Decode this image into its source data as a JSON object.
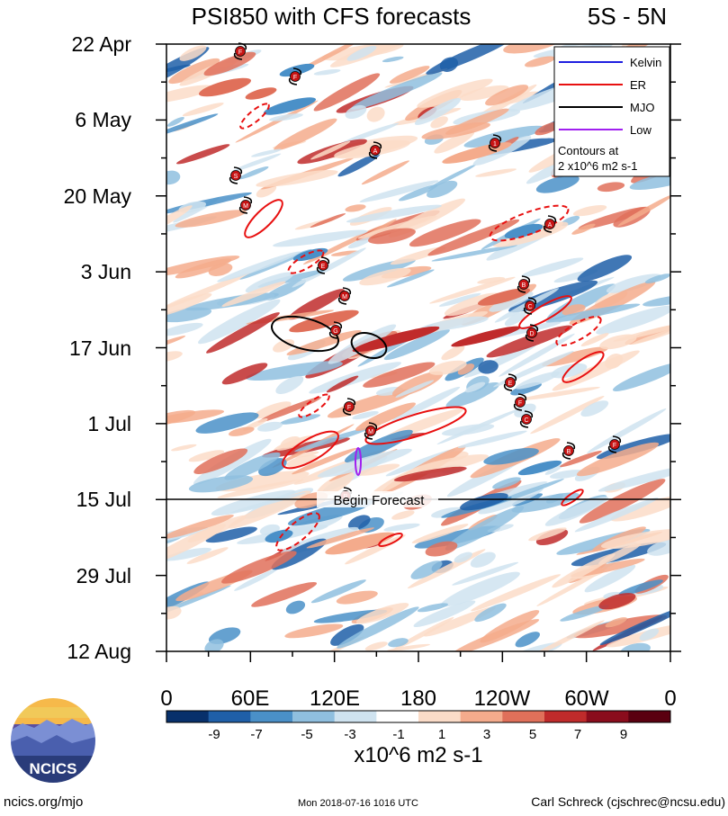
{
  "title": "PSI850 with CFS forecasts",
  "region": "5S - 5N",
  "y_ticks": [
    "22 Apr",
    "6 May",
    "20 May",
    "3 Jun",
    "17 Jun",
    "1 Jul",
    "15 Jul",
    "29 Jul",
    "12 Aug"
  ],
  "x_ticks": [
    "0",
    "60E",
    "120E",
    "180",
    "120W",
    "60W",
    "0"
  ],
  "begin_forecast_label": "Begin Forecast",
  "legend": {
    "items": [
      {
        "label": "Kelvin",
        "color": "#1f1fe0"
      },
      {
        "label": "ER",
        "color": "#e81010"
      },
      {
        "label": "MJO",
        "color": "#000000"
      },
      {
        "label": "Low",
        "color": "#a020f0"
      }
    ],
    "note_line1": "Contours at",
    "note_line2": "2 x10^6 m2 s-1"
  },
  "colorbar": {
    "colors": [
      "#08306b",
      "#1f5fa8",
      "#4a90c8",
      "#8fbfdf",
      "#cfe3f0",
      "#ffffff",
      "#fbdcc8",
      "#f4ab8c",
      "#e0705a",
      "#c02b2b",
      "#8a0c1c",
      "#5a0010"
    ],
    "labels": [
      "-9",
      "-7",
      "-5",
      "-3",
      "-1",
      "1",
      "3",
      "5",
      "7",
      "9"
    ],
    "units": "x10^6 m2 s-1"
  },
  "logo_text": "NCICS",
  "footer": {
    "left": "ncics.org/mjo",
    "center": "Mon 2018-07-16 1016 UTC",
    "right": "Carl Schreck (cjschrec@ncsu.edu)"
  },
  "storm_markers": [
    "F",
    "F",
    "S",
    "M",
    "E",
    "M",
    "G",
    "F",
    "M",
    "B",
    "1",
    "A",
    "A",
    "B",
    "C",
    "D",
    "E",
    "F",
    "C",
    "B"
  ],
  "chart_data": {
    "type": "heatmap",
    "title": "PSI850 with CFS forecasts",
    "subtitle": "5S - 5N",
    "x_axis": {
      "ticks": [
        "0",
        "60E",
        "120E",
        "180",
        "120W",
        "60W",
        "0"
      ],
      "range_lon": [
        0,
        360
      ]
    },
    "y_axis": {
      "ticks": [
        "22 Apr",
        "6 May",
        "20 May",
        "3 Jun",
        "17 Jun",
        "1 Jul",
        "15 Jul",
        "29 Jul",
        "12 Aug"
      ],
      "range": [
        "22 Apr",
        "12 Aug"
      ],
      "direction": "time increases downward"
    },
    "color_levels": [
      -9,
      -7,
      -5,
      -3,
      -1,
      1,
      3,
      5,
      7,
      9
    ],
    "units": "x10^6 m2 s-1",
    "forecast_start": "15 Jul",
    "overlays": [
      "Kelvin",
      "ER",
      "MJO",
      "Low"
    ],
    "contour_interval": "2 x10^6 m2 s-1"
  }
}
